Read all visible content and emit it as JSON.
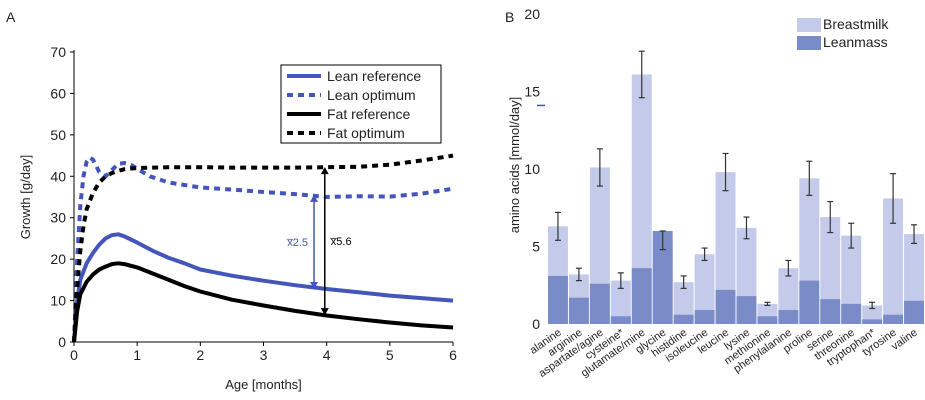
{
  "panel_labels": {
    "a": "A",
    "b": "B"
  },
  "colors": {
    "lean": "#4455bb",
    "fat": "#000000",
    "breastmilk": "#c4cbea",
    "leanmass": "#7a8cc8",
    "error_bar": "#333333"
  },
  "chart_data": [
    {
      "type": "line",
      "panel": "A",
      "xlabel": "Age [months]",
      "ylabel": "Growth [g/day]",
      "xlim": [
        0,
        6
      ],
      "ylim": [
        0,
        70
      ],
      "xticks": [
        "0",
        "1",
        "2",
        "3",
        "4",
        "5",
        "6"
      ],
      "yticks": [
        "0",
        "10",
        "20",
        "30",
        "40",
        "50",
        "60",
        "70"
      ],
      "legend_position": "top-right",
      "series": [
        {
          "name": "Lean reference",
          "style": "solid",
          "color": "#4455bb",
          "x": [
            0,
            0.05,
            0.1,
            0.2,
            0.3,
            0.4,
            0.5,
            0.6,
            0.7,
            0.8,
            1.0,
            1.25,
            1.5,
            1.75,
            2.0,
            2.5,
            3.0,
            3.5,
            4.0,
            4.5,
            5.0,
            5.5,
            6.0
          ],
          "y": [
            0,
            10,
            15,
            19,
            21.5,
            23.5,
            25,
            25.8,
            26,
            25.5,
            24,
            22,
            20.3,
            19,
            17.5,
            16,
            14.8,
            13.7,
            12.8,
            12,
            11.2,
            10.6,
            10
          ]
        },
        {
          "name": "Lean optimum",
          "style": "dashed",
          "color": "#4455bb",
          "x": [
            0,
            0.05,
            0.1,
            0.15,
            0.2,
            0.25,
            0.3,
            0.4,
            0.5,
            0.6,
            0.7,
            0.8,
            0.9,
            1.0,
            1.2,
            1.5,
            2.0,
            2.5,
            3.0,
            3.5,
            4.0,
            4.5,
            5.0,
            5.5,
            6.0
          ],
          "y": [
            0,
            20,
            33,
            40,
            43.5,
            44.5,
            44,
            41,
            40,
            41.5,
            43,
            43.2,
            42.8,
            41.8,
            40,
            38.5,
            37.3,
            36.8,
            36.2,
            35.7,
            35,
            35.2,
            35.1,
            35.8,
            37
          ]
        },
        {
          "name": "Fat reference",
          "style": "solid",
          "color": "#000000",
          "x": [
            0,
            0.05,
            0.1,
            0.2,
            0.3,
            0.4,
            0.5,
            0.6,
            0.7,
            0.8,
            1.0,
            1.25,
            1.5,
            1.75,
            2.0,
            2.5,
            3.0,
            3.5,
            4.0,
            4.5,
            5.0,
            5.5,
            6.0
          ],
          "y": [
            0,
            7.5,
            11.5,
            14.5,
            16.3,
            17.5,
            18.2,
            18.8,
            19,
            18.8,
            18,
            16.5,
            15,
            13.5,
            12.2,
            10.2,
            8.8,
            7.5,
            6.4,
            5.5,
            4.7,
            4,
            3.5
          ]
        },
        {
          "name": "Fat optimum",
          "style": "dashed",
          "color": "#000000",
          "x": [
            0,
            0.05,
            0.1,
            0.15,
            0.2,
            0.3,
            0.4,
            0.5,
            0.6,
            0.7,
            0.8,
            1.0,
            1.5,
            2.0,
            2.5,
            3.0,
            3.5,
            4.0,
            4.5,
            5.0,
            5.5,
            6.0
          ],
          "y": [
            0,
            13,
            22,
            28,
            32,
            36,
            38.5,
            40,
            40.8,
            41.3,
            41.7,
            42,
            42.2,
            42.2,
            42.1,
            42.1,
            42.1,
            42.2,
            42.3,
            42.8,
            43.8,
            45
          ]
        }
      ],
      "annotations": [
        {
          "label": "x̅2.5",
          "x": 3.8,
          "y_from": 12.8,
          "y_to": 35.5,
          "color": "#4455bb"
        },
        {
          "label": "x̅5.6",
          "x": 3.97,
          "y_from": 6.5,
          "y_to": 42.2,
          "color": "#000000"
        }
      ]
    },
    {
      "type": "bar",
      "panel": "B",
      "ylabel": "amino acids [mmol/day]",
      "ylim": [
        0,
        20
      ],
      "yticks": [
        "0",
        "5",
        "10",
        "15",
        "20"
      ],
      "legend_position": "top-right",
      "categories": [
        "alanine",
        "arginine",
        "aspartate/agine",
        "cysteine*",
        "glutamate/mine",
        "glycine",
        "histidine",
        "isoleucine",
        "leucine",
        "lysine",
        "methionine",
        "phenylalanine",
        "proline",
        "serine",
        "threonine",
        "tryptophan*",
        "tyrosine",
        "valine"
      ],
      "series": [
        {
          "name": "Breastmilk",
          "color": "#c4cbea",
          "values": [
            6.3,
            3.2,
            10.1,
            2.8,
            16.1,
            5.4,
            2.7,
            4.5,
            9.8,
            6.2,
            1.3,
            3.6,
            9.4,
            6.9,
            5.7,
            1.2,
            8.1,
            5.8
          ],
          "errors": [
            0.9,
            0.4,
            1.2,
            0.5,
            1.5,
            0.6,
            0.4,
            0.4,
            1.2,
            0.7,
            0.1,
            0.5,
            1.1,
            1.0,
            0.8,
            0.2,
            1.6,
            0.6
          ]
        },
        {
          "name": "Leanmass",
          "color": "#7a8cc8",
          "values": [
            3.1,
            1.7,
            2.6,
            0.5,
            3.6,
            6.0,
            0.6,
            0.9,
            2.2,
            1.8,
            0.5,
            0.9,
            2.8,
            1.6,
            1.3,
            0.3,
            0.6,
            1.5
          ]
        }
      ]
    }
  ]
}
